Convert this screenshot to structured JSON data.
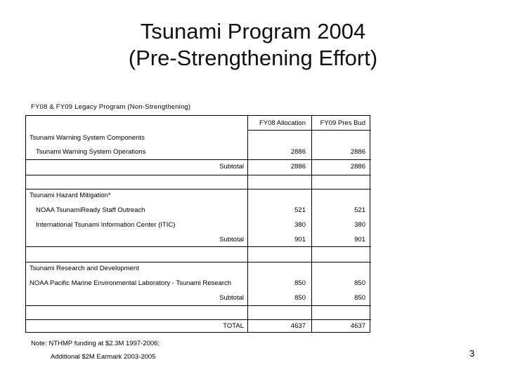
{
  "title_line1": "Tsunami Program 2004",
  "title_line2": "(Pre-Strengthening Effort)",
  "caption": "FY08 & FY09 Legacy Program (Non-Strengthening)",
  "columns": {
    "fy08": "FY08 Allocation",
    "fy09": "FY09 Pres Bud"
  },
  "sections": [
    {
      "heading": "Tsunami Warning System Components",
      "rows": [
        {
          "label": "Tsunami Warning System Operations",
          "fy08": "2886",
          "fy09": "2886"
        }
      ],
      "subtotal": {
        "label": "Subtotal",
        "fy08": "2886",
        "fy09": "2886"
      }
    },
    {
      "heading": "Tsunami Hazard Mitigation*",
      "rows": [
        {
          "label": "NOAA TsunamiReady Staff Outreach",
          "fy08": "521",
          "fy09": "521"
        },
        {
          "label": "International Tsunami Information Center (ITIC)",
          "fy08": "380",
          "fy09": "380"
        }
      ],
      "subtotal": {
        "label": "Subtotal",
        "fy08": "901",
        "fy09": "901"
      }
    },
    {
      "heading": "Tsunami Research and Development",
      "rows": [
        {
          "label": "NOAA Pacific Marine Environmental Laboratory - Tsunami Research",
          "fy08": "850",
          "fy09": "850"
        }
      ],
      "subtotal": {
        "label": "Subtotal",
        "fy08": "850",
        "fy09": "850"
      }
    }
  ],
  "total": {
    "label": "TOTAL",
    "fy08": "4637",
    "fy09": "4637"
  },
  "note_line1": "Note:  NTHMP funding at $2.3M 1997-2006;",
  "note_line2": "Additional $2M Earmark 2003-2005",
  "page_number": "3"
}
